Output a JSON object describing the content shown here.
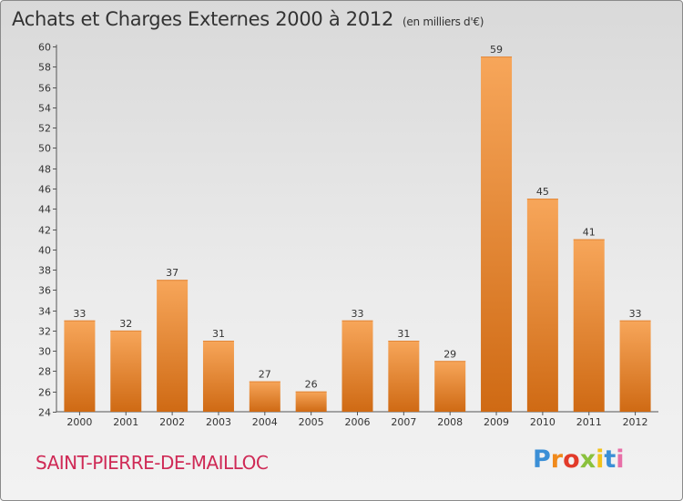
{
  "header": {
    "title": "Achats et Charges Externes 2000 à 2012",
    "unit": "(en milliers d'€)"
  },
  "footer": {
    "commune": "SAINT-PIERRE-DE-MAILLOC",
    "logo": [
      "P",
      "r",
      "o",
      "x",
      "i",
      "t",
      "i"
    ]
  },
  "colors": {
    "bar_light": "#f7a65a",
    "bar_dark": "#cf6a14",
    "commune": "#cf2a56"
  },
  "chart_data": {
    "type": "bar",
    "title": "Achats et Charges Externes 2000 à 2012",
    "subtitle": "(en milliers d'€)",
    "categories": [
      "2000",
      "2001",
      "2002",
      "2003",
      "2004",
      "2005",
      "2006",
      "2007",
      "2008",
      "2009",
      "2010",
      "2011",
      "2012"
    ],
    "values": [
      33,
      32,
      37,
      31,
      27,
      26,
      33,
      31,
      29,
      59,
      45,
      41,
      33
    ],
    "ylim": [
      24,
      60
    ],
    "yticks": [
      24,
      26,
      28,
      30,
      32,
      34,
      36,
      38,
      40,
      42,
      44,
      46,
      48,
      50,
      52,
      54,
      56,
      58,
      60
    ],
    "grid": false,
    "legend": "none"
  }
}
